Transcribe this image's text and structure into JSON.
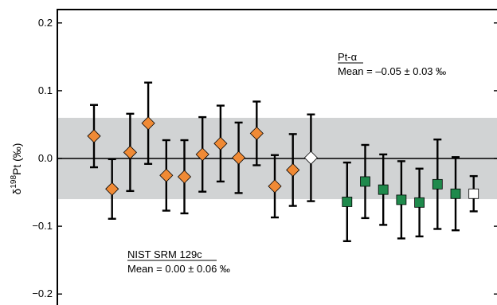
{
  "chart_data": {
    "type": "scatter",
    "title": "",
    "xlabel": "",
    "ylabel": "δ¹⁹⁸Pt (‰)",
    "ylabel_parts": {
      "delta": "δ",
      "mass": "198",
      "element": "Pt (‰)"
    },
    "ylim": [
      -0.21,
      0.21
    ],
    "yticks": [
      0.2,
      0.1,
      0.0,
      -0.1,
      -0.2
    ],
    "ytick_labels": [
      "0.2",
      "0.1",
      "0.0",
      "−0.1",
      "−0.2"
    ],
    "grid": false,
    "band": {
      "low": -0.06,
      "high": 0.06,
      "color": "#d1d3d4"
    },
    "zero_line": 0.0,
    "series": [
      {
        "marker": "diamond",
        "color": "#f08a35",
        "x": [
          1,
          2,
          3,
          4,
          5,
          6,
          7,
          8,
          9,
          10,
          11,
          12
        ],
        "y": [
          0.033,
          -0.045,
          0.009,
          0.052,
          -0.025,
          -0.027,
          0.006,
          0.022,
          0.001,
          0.037,
          -0.041,
          -0.017
        ],
        "err": [
          0.046,
          0.044,
          0.057,
          0.06,
          0.052,
          0.054,
          0.055,
          0.056,
          0.052,
          0.047,
          0.046,
          0.053
        ]
      },
      {
        "marker": "diamond",
        "color": "#ffffff",
        "x": [
          13
        ],
        "y": [
          0.001
        ],
        "err": [
          0.064
        ]
      },
      {
        "marker": "square",
        "color": "#1f8a4c",
        "x": [
          15,
          16,
          17,
          18,
          19,
          20,
          21
        ],
        "y": [
          -0.064,
          -0.034,
          -0.046,
          -0.061,
          -0.065,
          -0.038,
          -0.052
        ],
        "err": [
          0.058,
          0.054,
          0.052,
          0.057,
          0.05,
          0.066,
          0.054
        ]
      },
      {
        "marker": "square",
        "color": "#ffffff",
        "x": [
          22
        ],
        "y": [
          -0.052
        ],
        "err": [
          0.026
        ]
      }
    ],
    "annotations": [
      {
        "title": "Pt-α",
        "text": "Mean = –0.05 ± 0.03 ‰"
      },
      {
        "title": "NIST SRM 129c",
        "text": "Mean = 0.00 ± 0.06 ‰"
      }
    ]
  }
}
